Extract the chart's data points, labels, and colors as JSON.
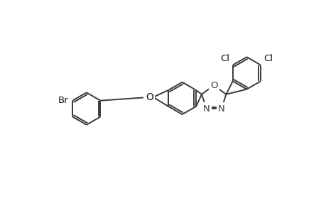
{
  "bg_color": "#ffffff",
  "line_color": "#3a3a3a",
  "font_size": 9.5,
  "lw": 1.4,
  "figsize": [
    4.6,
    3.0
  ],
  "dpi": 100,
  "xlim": [
    0.0,
    4.6
  ],
  "ylim": [
    0.0,
    3.0
  ]
}
